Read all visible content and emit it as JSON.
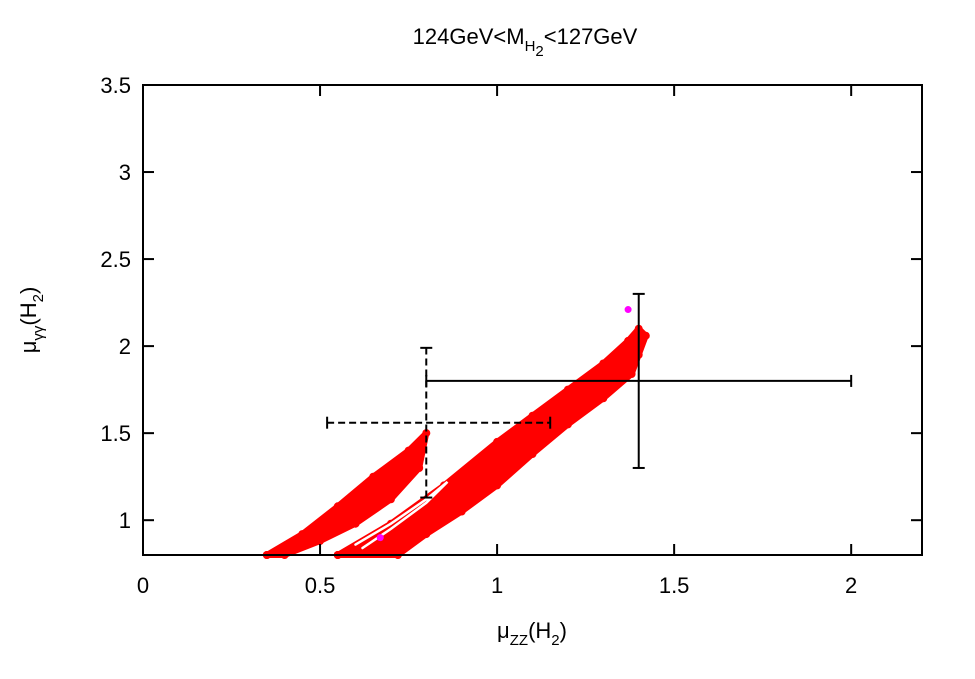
{
  "chart_data": {
    "type": "scatter",
    "title": {
      "base": "124GeV<M",
      "sub": "H",
      "subsub": "2",
      "tail": "<127GeV"
    },
    "xlabel": {
      "base": "μ",
      "sub": "ZZ",
      "tail_open": "(H",
      "tail_sub": "2",
      "tail_close": ")"
    },
    "ylabel": {
      "base": "μ",
      "sub": "γγ",
      "tail_open": "(H",
      "tail_sub": "2",
      "tail_close": ")"
    },
    "xlim": [
      0,
      2.2
    ],
    "ylim": [
      0.8,
      3.5
    ],
    "x_ticks": [
      0,
      0.5,
      1,
      1.5,
      2
    ],
    "x_tick_labels": [
      "0",
      "0.5",
      "1",
      "1.5",
      "2"
    ],
    "y_ticks": [
      1,
      1.5,
      2,
      2.5,
      3,
      3.5
    ],
    "y_tick_labels": [
      "1",
      "1.5",
      "2",
      "2.5",
      "3",
      "3.5"
    ],
    "grid": false,
    "colors": {
      "scan_points": "#ff0000",
      "highlight_points": "#ff00ff",
      "error_bars": "#000000"
    },
    "scan_region": {
      "description_band_a": {
        "x": [
          0.35,
          0.45,
          0.55,
          0.65,
          0.75,
          0.8,
          0.78,
          0.7,
          0.6,
          0.5,
          0.4,
          0.35
        ],
        "y": [
          0.8,
          0.92,
          1.08,
          1.25,
          1.4,
          1.5,
          1.3,
          1.12,
          0.98,
          0.88,
          0.8,
          0.8
        ]
      },
      "band_b": {
        "x": [
          0.55,
          0.7,
          0.85,
          1.0,
          1.1,
          1.2,
          1.3,
          1.37,
          1.4,
          1.42,
          1.4,
          1.38,
          1.3,
          1.2,
          1.1,
          1.0,
          0.9,
          0.8,
          0.72,
          0.55
        ],
        "y": [
          0.8,
          0.98,
          1.2,
          1.45,
          1.6,
          1.75,
          1.9,
          2.03,
          2.1,
          2.06,
          1.95,
          1.84,
          1.7,
          1.55,
          1.38,
          1.2,
          1.05,
          0.92,
          0.8,
          0.8
        ]
      },
      "x_range": [
        0.35,
        1.42
      ],
      "y_range": [
        0.8,
        2.13
      ]
    },
    "highlight_points": [
      {
        "x": 1.37,
        "y": 2.21
      },
      {
        "x": 0.67,
        "y": 0.9
      }
    ],
    "error_bars": [
      {
        "style": "solid",
        "x": 1.4,
        "y": 1.8,
        "x_err": [
          0.6,
          0.6
        ],
        "y_err": [
          0.5,
          0.5
        ]
      },
      {
        "style": "dashed",
        "x": 0.8,
        "y": 1.56,
        "x_err": [
          0.28,
          0.35
        ],
        "y_err": [
          0.43,
          0.43
        ]
      }
    ]
  }
}
